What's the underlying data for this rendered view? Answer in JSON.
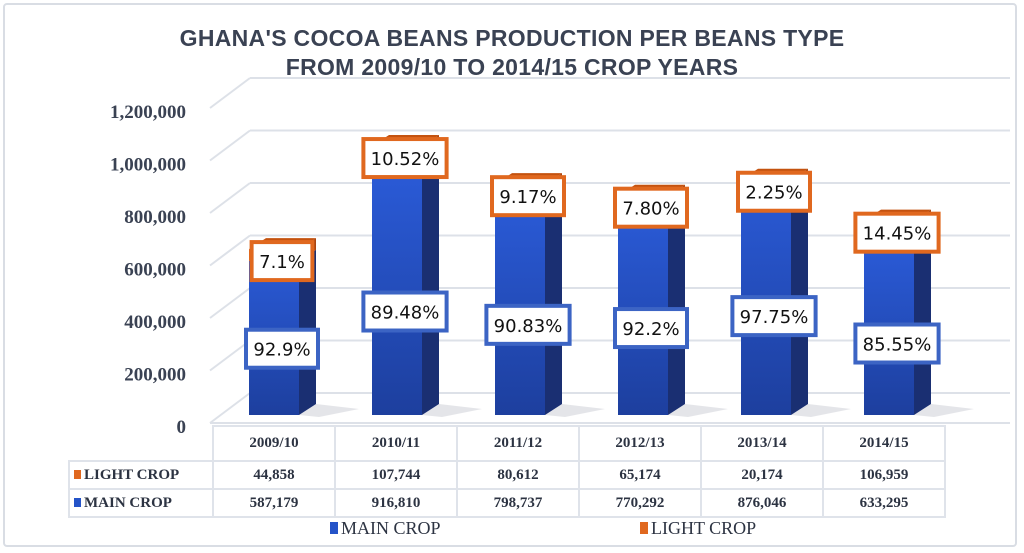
{
  "chart_data": {
    "type": "bar",
    "stacked": true,
    "three_d": true,
    "title_lines": [
      "GHANA'S COCOA BEANS PRODUCTION PER BEANS TYPE",
      "FROM 2009/10 TO 2014/15 CROP YEARS"
    ],
    "categories": [
      "2009/10",
      "2010/11",
      "2011/12",
      "2012/13",
      "2013/14",
      "2014/15"
    ],
    "series": [
      {
        "name": "MAIN CROP",
        "color": "#2453c8",
        "values": [
          587179,
          916810,
          798737,
          770292,
          876046,
          633295
        ],
        "value_labels": [
          "587,179",
          "916,810",
          "798,737",
          "770,292",
          "876,046",
          "633,295"
        ],
        "percent_labels": [
          "92.9%",
          "89.48%",
          "90.83%",
          "92.2%",
          "97.75%",
          "85.55%"
        ]
      },
      {
        "name": "LIGHT CROP",
        "color": "#e0681f",
        "values": [
          44858,
          107744,
          80612,
          65174,
          20174,
          106959
        ],
        "value_labels": [
          "44,858",
          "107,744",
          "80,612",
          "65,174",
          "20,174",
          "106,959"
        ],
        "percent_labels": [
          "7.1%",
          "10.52%",
          "9.17%",
          "7.80%",
          "2.25%",
          "14.45%"
        ]
      }
    ],
    "yticks": [
      "0",
      "200,000",
      "400,000",
      "600,000",
      "800,000",
      "1,000,000",
      "1,200,000"
    ],
    "ylim": [
      0,
      1200000
    ],
    "grid": true,
    "legend_position": "bottom",
    "data_table": true
  }
}
